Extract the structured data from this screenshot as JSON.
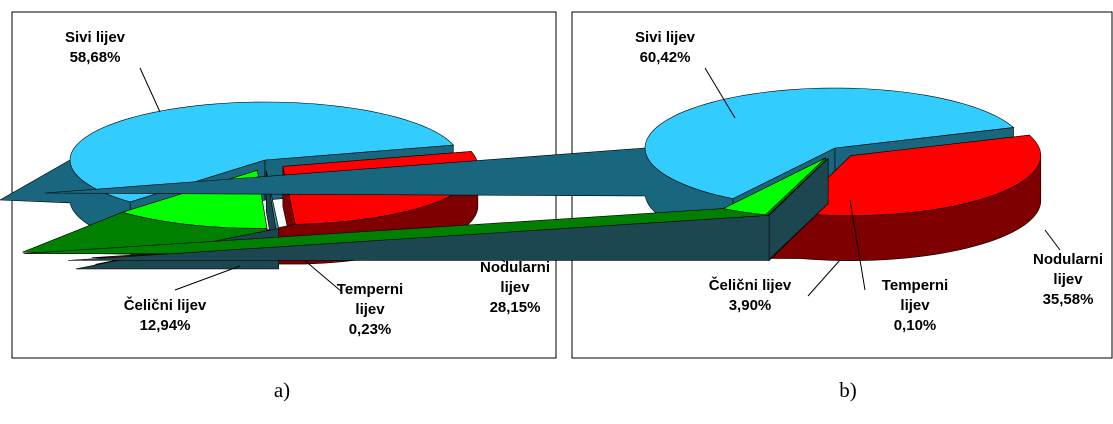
{
  "chart_data": [
    {
      "type": "pie3d",
      "caption": "a)",
      "categories": [
        "Sivi lijev",
        "Čelični lijev",
        "Temperni lijev",
        "Nodularni lijev"
      ],
      "values": [
        58.68,
        12.94,
        0.23,
        28.15
      ],
      "value_labels": [
        "58,68%",
        "12,94%",
        "0,23%",
        "28,15%"
      ],
      "colors": [
        "#33ccff",
        "#00ff00",
        "#3a8fa0",
        "#ff0000"
      ]
    },
    {
      "type": "pie3d",
      "caption": "b)",
      "categories": [
        "Sivi lijev",
        "Čelični lijev",
        "Temperni lijev",
        "Nodularni lijev"
      ],
      "values": [
        60.42,
        3.9,
        0.1,
        35.58
      ],
      "value_labels": [
        "60,42%",
        "3,90%",
        "0,10%",
        "35,58%"
      ],
      "colors": [
        "#33ccff",
        "#00ff00",
        "#3a8fa0",
        "#ff0000"
      ]
    }
  ]
}
